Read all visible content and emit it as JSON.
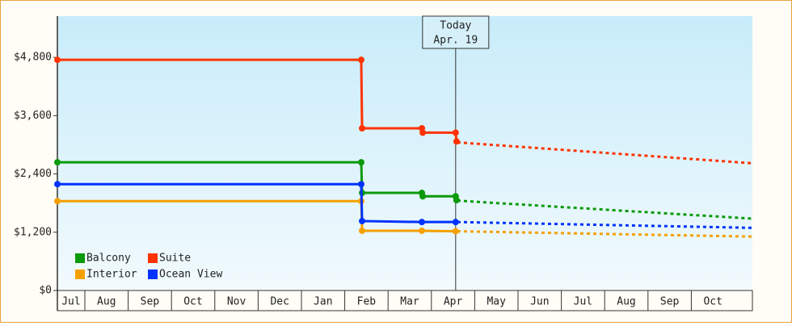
{
  "chart_data": {
    "type": "line",
    "xlim": [
      0.366,
      16.41
    ],
    "xticks": [
      {
        "value": 0,
        "label": "Jul"
      },
      {
        "value": 1,
        "label": "Aug"
      },
      {
        "value": 2,
        "label": "Sep"
      },
      {
        "value": 3,
        "label": "Oct"
      },
      {
        "value": 4,
        "label": "Nov"
      },
      {
        "value": 5,
        "label": "Dec"
      },
      {
        "value": 6,
        "label": "Jan"
      },
      {
        "value": 7,
        "label": "Feb"
      },
      {
        "value": 8,
        "label": "Mar"
      },
      {
        "value": 9,
        "label": "Apr"
      },
      {
        "value": 10,
        "label": "May"
      },
      {
        "value": 11,
        "label": "Jun"
      },
      {
        "value": 12,
        "label": "Jul"
      },
      {
        "value": 13,
        "label": "Aug"
      },
      {
        "value": 14,
        "label": "Sep"
      },
      {
        "value": 15,
        "label": "Oct"
      }
    ],
    "ylim": [
      0,
      5650
    ],
    "yticks": [
      {
        "value": 0,
        "label": "$0"
      },
      {
        "value": 1200,
        "label": "$1,200"
      },
      {
        "value": 2400,
        "label": "$2,400"
      },
      {
        "value": 3600,
        "label": "$3,600"
      },
      {
        "value": 4800,
        "label": "$4,800"
      }
    ],
    "today": {
      "x": 9.56,
      "label": [
        "Today",
        "Apr. 19"
      ]
    },
    "legend": "lower left",
    "series": [
      {
        "name": "Balcony",
        "color": "#0a9a0a",
        "x": [
          0.366,
          7.38,
          7.4,
          8.78,
          8.8,
          9.56,
          9.58
        ],
        "values": [
          2640,
          2640,
          2010,
          2010,
          1940,
          1940,
          1860
        ],
        "forecast_x": [
          9.6,
          16.41
        ],
        "forecast_values": [
          1850,
          1480
        ]
      },
      {
        "name": "Suite",
        "color": "#ff3300",
        "x": [
          0.366,
          7.38,
          7.4,
          8.78,
          8.8,
          9.56,
          9.58
        ],
        "values": [
          4750,
          4750,
          3340,
          3340,
          3250,
          3250,
          3070
        ],
        "forecast_x": [
          9.6,
          16.41
        ],
        "forecast_values": [
          3050,
          2620
        ]
      },
      {
        "name": "Interior",
        "color": "#f5a000",
        "x": [
          0.366,
          7.38,
          7.4,
          8.78,
          9.56
        ],
        "values": [
          1840,
          1840,
          1230,
          1230,
          1220
        ],
        "forecast_x": [
          9.6,
          16.41
        ],
        "forecast_values": [
          1220,
          1110
        ]
      },
      {
        "name": "Ocean View",
        "color": "#0033ff",
        "x": [
          0.366,
          7.38,
          7.4,
          8.78,
          9.56
        ],
        "values": [
          2190,
          2190,
          1430,
          1410,
          1410
        ],
        "forecast_x": [
          9.6,
          16.41
        ],
        "forecast_values": [
          1410,
          1290
        ]
      }
    ]
  }
}
